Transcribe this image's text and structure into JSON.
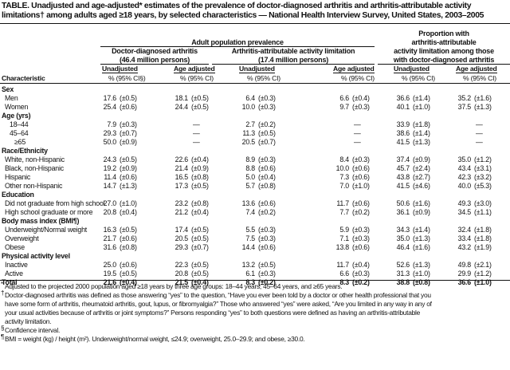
{
  "title": {
    "line1": "TABLE. Unadjusted and age-adjusted* estimates of the prevalence of doctor-diagnosed arthritis and arthritis-attributable activity",
    "line2": "limitations† among adults aged ≥18 years, by selected characteristics — National Health Interview Survey, United States, 2003–2005"
  },
  "header": {
    "group_prevalence": "Adult population prevalence",
    "group_proportion": [
      "Proportion with",
      "arthritis-attributable",
      "activity  limitation among those",
      "with doctor-diagnosed arthritis"
    ],
    "doctor": [
      "Doctor-diagnosed arthritis",
      "(46.4 million persons)"
    ],
    "limitation": [
      "Arthritis-attributable activity limitation",
      "(17.4 million persons)"
    ],
    "unadjusted": "Unadjusted",
    "age_adjusted": "Age adjusted",
    "characteristic": "Characteristic",
    "pct_ci_first": "%   (95% CI§)",
    "pct_ci": "%   (95% CI)"
  },
  "rows": [
    {
      "label": "Sex",
      "type": "section"
    },
    {
      "label": "Men",
      "type": "row",
      "values": [
        [
          "17.6",
          "(±0.5)"
        ],
        [
          "18.1",
          "(±0.5)"
        ],
        [
          "6.4",
          "(±0.3)"
        ],
        [
          "6.6",
          "(±0.4)"
        ],
        [
          "36.6",
          "(±1.4)"
        ],
        [
          "35.2",
          "(±1.6)"
        ]
      ]
    },
    {
      "label": "Women",
      "type": "row",
      "values": [
        [
          "25.4",
          "(±0.6)"
        ],
        [
          "24.4",
          "(±0.5)"
        ],
        [
          "10.0",
          "(±0.3)"
        ],
        [
          "9.7",
          "(±0.3)"
        ],
        [
          "40.1",
          "(±1.0)"
        ],
        [
          "37.5",
          "(±1.3)"
        ]
      ]
    },
    {
      "label": "Age (yrs)",
      "type": "section"
    },
    {
      "label": "18–44",
      "type": "row",
      "indent": 1,
      "values": [
        [
          "7.9",
          "(±0.3)"
        ],
        null,
        [
          "2.7",
          "(±0.2)"
        ],
        null,
        [
          "33.9",
          "(±1.8)"
        ],
        null
      ]
    },
    {
      "label": "45–64",
      "type": "row",
      "indent": 1,
      "values": [
        [
          "29.3",
          "(±0.7)"
        ],
        null,
        [
          "11.3",
          "(±0.5)"
        ],
        null,
        [
          "38.6",
          "(±1.4)"
        ],
        null
      ]
    },
    {
      "label": "≥65",
      "type": "row",
      "indent": 2,
      "values": [
        [
          "50.0",
          "(±0.9)"
        ],
        null,
        [
          "20.5",
          "(±0.7)"
        ],
        null,
        [
          "41.5",
          "(±1.3)"
        ],
        null
      ]
    },
    {
      "label": "Race/Ethnicity",
      "type": "section"
    },
    {
      "label": "White, non-Hispanic",
      "type": "row",
      "values": [
        [
          "24.3",
          "(±0.5)"
        ],
        [
          "22.6",
          "(±0.4)"
        ],
        [
          "8.9",
          "(±0.3)"
        ],
        [
          "8.4",
          "(±0.3)"
        ],
        [
          "37.4",
          "(±0.9)"
        ],
        [
          "35.0",
          "(±1.2)"
        ]
      ]
    },
    {
      "label": "Black, non-Hispanic",
      "type": "row",
      "values": [
        [
          "19.2",
          "(±0.9)"
        ],
        [
          "21.4",
          "(±0.9)"
        ],
        [
          "8.8",
          "(±0.6)"
        ],
        [
          "10.0",
          "(±0.6)"
        ],
        [
          "45.7",
          "(±2.4)"
        ],
        [
          "43.4",
          "(±3.1)"
        ]
      ]
    },
    {
      "label": "Hispanic",
      "type": "row",
      "values": [
        [
          "11.4",
          "(±0.6)"
        ],
        [
          "16.5",
          "(±0.8)"
        ],
        [
          "5.0",
          "(±0.4)"
        ],
        [
          "7.3",
          "(±0.6)"
        ],
        [
          "43.8",
          "(±2.7)"
        ],
        [
          "42.3",
          "(±3.2)"
        ]
      ]
    },
    {
      "label": "Other non-Hispanic",
      "type": "row",
      "values": [
        [
          "14.7",
          "(±1.3)"
        ],
        [
          "17.3",
          "(±0.5)"
        ],
        [
          "5.7",
          "(±0.8)"
        ],
        [
          "7.0",
          "(±1.0)"
        ],
        [
          "41.5",
          "(±4.6)"
        ],
        [
          "40.0",
          "(±5.3)"
        ]
      ]
    },
    {
      "label": "Education",
      "type": "section"
    },
    {
      "label": "Did not graduate from high school",
      "type": "row",
      "values": [
        [
          "27.0",
          "(±1.0)"
        ],
        [
          "23.2",
          "(±0.8)"
        ],
        [
          "13.6",
          "(±0.6)"
        ],
        [
          "11.7",
          "(±0.6)"
        ],
        [
          "50.6",
          "(±1.6)"
        ],
        [
          "49.3",
          "(±3.0)"
        ]
      ]
    },
    {
      "label": "High school graduate or more",
      "type": "row",
      "values": [
        [
          "20.8",
          "(±0.4)"
        ],
        [
          "21.2",
          "(±0.4)"
        ],
        [
          "7.4",
          "(±0.2)"
        ],
        [
          "7.7",
          "(±0.2)"
        ],
        [
          "36.1",
          "(±0.9)"
        ],
        [
          "34.5",
          "(±1.1)"
        ]
      ]
    },
    {
      "label": "Body mass index (BMI¶)",
      "type": "section"
    },
    {
      "label": "Underweight/Normal weight",
      "type": "row",
      "values": [
        [
          "16.3",
          "(±0.5)"
        ],
        [
          "17.4",
          "(±0.5)"
        ],
        [
          "5.5",
          "(±0.3)"
        ],
        [
          "5.9",
          "(±0.3)"
        ],
        [
          "34.3",
          "(±1.4)"
        ],
        [
          "32.4",
          "(±1.8)"
        ]
      ]
    },
    {
      "label": "Overweight",
      "type": "row",
      "values": [
        [
          "21.7",
          "(±0.6)"
        ],
        [
          "20.5",
          "(±0.5)"
        ],
        [
          "7.5",
          "(±0.3)"
        ],
        [
          "7.1",
          "(±0.3)"
        ],
        [
          "35.0",
          "(±1.3)"
        ],
        [
          "33.4",
          "(±1.8)"
        ]
      ]
    },
    {
      "label": "Obese",
      "type": "row",
      "values": [
        [
          "31.6",
          "(±0.8)"
        ],
        [
          "29.3",
          "(±0.7)"
        ],
        [
          "14.4",
          "(±0.6)"
        ],
        [
          "13.8",
          "(±0.6)"
        ],
        [
          "46.4",
          "(±1.6)"
        ],
        [
          "43.2",
          "(±1.9)"
        ]
      ]
    },
    {
      "label": "Physical activity level",
      "type": "section"
    },
    {
      "label": "Inactive",
      "type": "row",
      "values": [
        [
          "25.0",
          "(±0.6)"
        ],
        [
          "22.3",
          "(±0.5)"
        ],
        [
          "13.2",
          "(±0.5)"
        ],
        [
          "11.7",
          "(±0.4)"
        ],
        [
          "52.6",
          "(±1.3)"
        ],
        [
          "49.8",
          "(±2.1)"
        ]
      ]
    },
    {
      "label": "Active",
      "type": "row",
      "values": [
        [
          "19.5",
          "(±0.5)"
        ],
        [
          "20.8",
          "(±0.5)"
        ],
        [
          "6.1",
          "(±0.3)"
        ],
        [
          "6.6",
          "(±0.3)"
        ],
        [
          "31.3",
          "(±1.0)"
        ],
        [
          "29.9",
          "(±1.2)"
        ]
      ]
    },
    {
      "label": "Total",
      "type": "total",
      "values": [
        [
          "21.6",
          "(±0.4)"
        ],
        [
          "21.5",
          "(±0.4)"
        ],
        [
          "8.3",
          "(±0.2)"
        ],
        [
          "8.3",
          "(±0.2)"
        ],
        [
          "38.8",
          "(±0.8)"
        ],
        [
          "36.6",
          "(±1.0)"
        ]
      ]
    }
  ],
  "dash": "—",
  "footnotes": [
    {
      "symbol": "*",
      "lines": [
        "Adjusted to the projected 2000 population aged ≥18 years by three age groups: 18–44 years, 45–64 years, and ≥65 years."
      ]
    },
    {
      "symbol": "†",
      "lines": [
        "Doctor-diagnosed arthritis was defined as those answering “yes” to the question, “Have you ever been told by a doctor or other health professional that you",
        "have some form of arthritis, rheumatoid arthritis, gout, lupus, or fibromyalgia?” Those who answered “yes” were asked, “Are you limited in any way in any of",
        "your usual activities because of arthritis or joint symptoms?” Persons responding “yes” to both questions were defined as having an arthritis-attributable",
        "activity limitation."
      ]
    },
    {
      "symbol": "§",
      "lines": [
        "Confidence interval."
      ]
    },
    {
      "symbol": "¶",
      "lines": [
        "BMI = weight (kg) / height (m²). Underweight/normal weight, ≤24.9; overweight, 25.0–29.9; and obese, ≥30.0."
      ]
    }
  ]
}
